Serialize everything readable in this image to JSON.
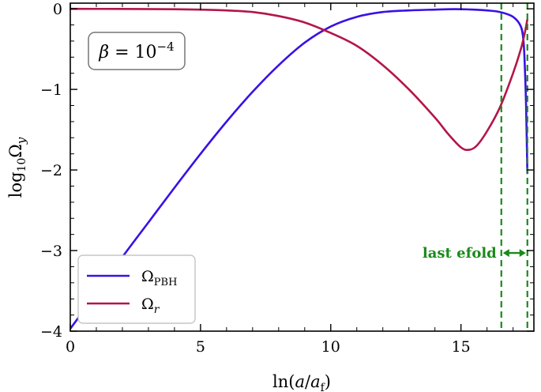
{
  "chart_data": {
    "type": "line",
    "xlabel": "ln(a/a_f)",
    "ylabel": "log10 Ω_y",
    "xlim": [
      0,
      17.8
    ],
    "ylim": [
      -4,
      0.07
    ],
    "x_ticks": [
      0,
      5,
      10,
      15
    ],
    "x_tick_labels": [
      "0",
      "5",
      "10",
      "15"
    ],
    "y_ticks": [
      0,
      -1,
      -2,
      -3,
      -4
    ],
    "y_tick_labels": [
      "0",
      "−1",
      "−2",
      "−3",
      "−4"
    ],
    "grid": false,
    "legend_position": "lower-left",
    "annotation_box": {
      "text": "β = 10^−4",
      "position": "top-left"
    },
    "series": [
      {
        "name": "Ω_PBH",
        "color": "#3a10e5",
        "x": [
          0,
          0.5,
          1,
          2,
          3,
          4,
          5,
          6,
          7,
          8,
          9,
          10,
          11,
          12,
          13,
          14,
          14.5,
          15,
          15.5,
          16,
          16.5,
          17,
          17.3,
          17.4,
          17.45,
          17.5,
          17.55
        ],
        "y": [
          -3.97,
          -3.75,
          -3.53,
          -3.08,
          -2.65,
          -2.22,
          -1.8,
          -1.4,
          -1.03,
          -0.7,
          -0.42,
          -0.22,
          -0.1,
          -0.04,
          -0.02,
          -0.01,
          -0.005,
          -0.005,
          -0.01,
          -0.02,
          -0.04,
          -0.1,
          -0.22,
          -0.4,
          -0.7,
          -1.2,
          -2.05
        ]
      },
      {
        "name": "Ω_r",
        "color": "#b31647",
        "x": [
          0,
          2,
          4,
          5,
          6,
          7,
          8,
          9,
          10,
          11,
          12,
          13,
          14,
          14.5,
          15,
          15.3,
          15.6,
          16,
          16.5,
          17,
          17.3,
          17.45,
          17.55
        ],
        "y": [
          0,
          -0.002,
          -0.005,
          -0.01,
          -0.02,
          -0.04,
          -0.09,
          -0.17,
          -0.3,
          -0.46,
          -0.7,
          -1.0,
          -1.35,
          -1.55,
          -1.72,
          -1.75,
          -1.7,
          -1.52,
          -1.22,
          -0.8,
          -0.5,
          -0.3,
          -0.13
        ]
      }
    ],
    "vlines": [
      {
        "x": 16.55,
        "color": "#1a8a1a",
        "style": "dashed"
      },
      {
        "x": 17.55,
        "color": "#1a8a1a",
        "style": "dashed"
      }
    ],
    "arrow_annotation": {
      "text": "last efold",
      "x_from": 16.55,
      "x_to": 17.55,
      "y": -3.03,
      "color": "#1a8a1a"
    }
  }
}
